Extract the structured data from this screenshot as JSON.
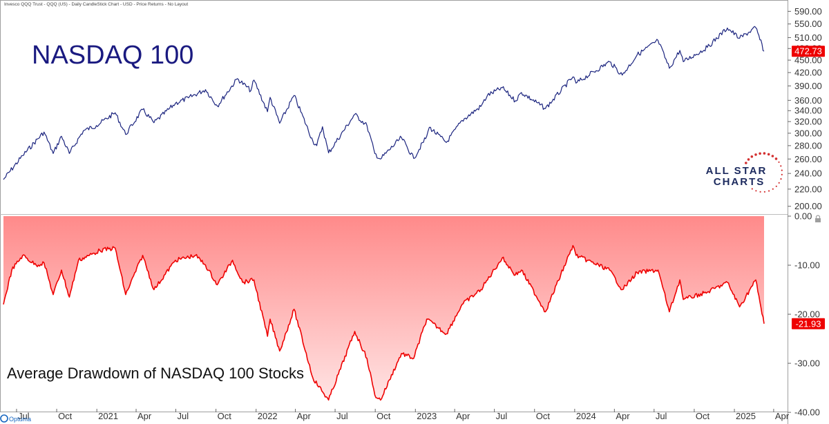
{
  "header": {
    "subtitle": "Invesco QQQ Trust - QQQ (US) - Daily CandleStick Chart - USD - Price Returns - No Layout"
  },
  "branding": {
    "logo_line1": "ALL STAR",
    "logo_line2": "CHARTS",
    "footer_logo": "Optuma"
  },
  "colors": {
    "price_line": "#1a237e",
    "drawdown_line": "#ee0000",
    "fill_top": "#ff8a8a",
    "fill_bottom": "#ffe4e4",
    "badge": "#ee0000",
    "title_text": "#1a1a80",
    "logo_navy": "#1c2a5e",
    "logo_red": "#d32f2f"
  },
  "chart_data": [
    {
      "type": "line",
      "title": "NASDAQ 100",
      "scale": "log",
      "ylim": [
        196,
        600
      ],
      "yticks": [
        "590.00",
        "550.00",
        "510.00",
        "480.00",
        "450.00",
        "420.00",
        "390.00",
        "360.00",
        "340.00",
        "320.00",
        "300.00",
        "280.00",
        "260.00",
        "240.00",
        "220.00",
        "200.00"
      ],
      "last_value_label": "472.73",
      "x_start": "2020-06-01",
      "x_end": "2025-03-10",
      "points": [
        [
          "2020-06-01",
          232
        ],
        [
          "2020-07-15",
          265
        ],
        [
          "2020-09-02",
          302
        ],
        [
          "2020-09-23",
          268
        ],
        [
          "2020-10-12",
          295
        ],
        [
          "2020-10-30",
          268
        ],
        [
          "2020-12-01",
          304
        ],
        [
          "2020-12-31",
          313
        ],
        [
          "2021-02-12",
          336
        ],
        [
          "2021-03-08",
          298
        ],
        [
          "2021-04-16",
          342
        ],
        [
          "2021-05-12",
          318
        ],
        [
          "2021-06-30",
          354
        ],
        [
          "2021-07-30",
          365
        ],
        [
          "2021-09-07",
          382
        ],
        [
          "2021-10-04",
          349
        ],
        [
          "2021-11-19",
          406
        ],
        [
          "2021-12-20",
          380
        ],
        [
          "2021-12-27",
          403
        ],
        [
          "2022-01-27",
          338
        ],
        [
          "2022-02-02",
          366
        ],
        [
          "2022-02-24",
          317
        ],
        [
          "2022-03-29",
          370
        ],
        [
          "2022-05-11",
          287
        ],
        [
          "2022-05-20",
          280
        ],
        [
          "2022-06-02",
          311
        ],
        [
          "2022-06-16",
          269
        ],
        [
          "2022-08-15",
          333
        ],
        [
          "2022-09-12",
          313
        ],
        [
          "2022-09-30",
          268
        ],
        [
          "2022-10-13",
          260
        ],
        [
          "2022-11-30",
          293
        ],
        [
          "2022-12-28",
          261
        ],
        [
          "2023-01-27",
          295
        ],
        [
          "2023-02-02",
          310
        ],
        [
          "2023-03-13",
          285
        ],
        [
          "2023-04-18",
          322
        ],
        [
          "2023-05-31",
          348
        ],
        [
          "2023-06-15",
          370
        ],
        [
          "2023-07-19",
          386
        ],
        [
          "2023-08-18",
          359
        ],
        [
          "2023-09-01",
          376
        ],
        [
          "2023-10-26",
          344
        ],
        [
          "2023-12-28",
          410
        ],
        [
          "2024-01-04",
          396
        ],
        [
          "2024-03-21",
          446
        ],
        [
          "2024-04-19",
          414
        ],
        [
          "2024-05-23",
          463
        ],
        [
          "2024-07-10",
          502
        ],
        [
          "2024-08-05",
          430
        ],
        [
          "2024-08-29",
          475
        ],
        [
          "2024-09-06",
          446
        ],
        [
          "2024-10-31",
          483
        ],
        [
          "2024-12-16",
          538
        ],
        [
          "2025-01-13",
          508
        ],
        [
          "2025-02-19",
          539
        ],
        [
          "2025-03-10",
          472.73
        ]
      ]
    },
    {
      "type": "area",
      "title": "Average Drawdown of NASDAQ 100 Stocks",
      "ylim": [
        -39,
        0
      ],
      "yticks": [
        "0.00",
        "-10.00",
        "-20.00",
        "-30.00",
        "-40.00"
      ],
      "last_value_label": "-21.93",
      "x_start": "2020-06-01",
      "x_end": "2025-03-10",
      "points": [
        [
          "2020-06-01",
          -18
        ],
        [
          "2020-06-20",
          -11
        ],
        [
          "2020-07-15",
          -8
        ],
        [
          "2020-08-15",
          -10
        ],
        [
          "2020-09-02",
          -9.5
        ],
        [
          "2020-09-23",
          -16
        ],
        [
          "2020-10-12",
          -11
        ],
        [
          "2020-10-30",
          -16.5
        ],
        [
          "2020-11-20",
          -9
        ],
        [
          "2020-12-15",
          -8
        ],
        [
          "2021-01-08",
          -7
        ],
        [
          "2021-02-12",
          -6.5
        ],
        [
          "2021-03-08",
          -16
        ],
        [
          "2021-04-16",
          -8
        ],
        [
          "2021-05-12",
          -15
        ],
        [
          "2021-06-30",
          -9
        ],
        [
          "2021-08-15",
          -8
        ],
        [
          "2021-09-07",
          -10
        ],
        [
          "2021-10-04",
          -14
        ],
        [
          "2021-11-08",
          -9
        ],
        [
          "2021-12-01",
          -13.5
        ],
        [
          "2021-12-27",
          -13
        ],
        [
          "2022-01-27",
          -24.5
        ],
        [
          "2022-02-02",
          -21
        ],
        [
          "2022-02-24",
          -27.5
        ],
        [
          "2022-03-29",
          -19
        ],
        [
          "2022-05-11",
          -33
        ],
        [
          "2022-06-16",
          -37.5
        ],
        [
          "2022-08-15",
          -23.5
        ],
        [
          "2022-09-12",
          -29
        ],
        [
          "2022-09-30",
          -36.5
        ],
        [
          "2022-10-13",
          -37.5
        ],
        [
          "2022-11-30",
          -28
        ],
        [
          "2022-12-28",
          -29
        ],
        [
          "2023-01-27",
          -21
        ],
        [
          "2023-03-13",
          -24
        ],
        [
          "2023-04-18",
          -18
        ],
        [
          "2023-05-31",
          -15
        ],
        [
          "2023-07-19",
          -8.5
        ],
        [
          "2023-08-18",
          -12
        ],
        [
          "2023-09-01",
          -11
        ],
        [
          "2023-10-26",
          -19.5
        ],
        [
          "2023-12-28",
          -6
        ],
        [
          "2024-01-04",
          -8
        ],
        [
          "2024-03-21",
          -11
        ],
        [
          "2024-04-19",
          -15
        ],
        [
          "2024-05-23",
          -11.5
        ],
        [
          "2024-07-10",
          -11
        ],
        [
          "2024-08-05",
          -19.5
        ],
        [
          "2024-08-29",
          -13
        ],
        [
          "2024-09-06",
          -17
        ],
        [
          "2024-10-31",
          -15.5
        ],
        [
          "2024-12-16",
          -13.5
        ],
        [
          "2025-01-13",
          -18.5
        ],
        [
          "2025-02-19",
          -13
        ],
        [
          "2025-03-10",
          -21.93
        ]
      ]
    }
  ],
  "x_axis": {
    "ticks": [
      {
        "date": "2020-07-01",
        "label": "Jul"
      },
      {
        "date": "2020-10-01",
        "label": "Oct"
      },
      {
        "date": "2021-01-01",
        "label": "2021"
      },
      {
        "date": "2021-04-01",
        "label": "Apr"
      },
      {
        "date": "2021-07-01",
        "label": "Jul"
      },
      {
        "date": "2021-10-01",
        "label": "Oct"
      },
      {
        "date": "2022-01-01",
        "label": "2022"
      },
      {
        "date": "2022-04-01",
        "label": "Apr"
      },
      {
        "date": "2022-07-01",
        "label": "Jul"
      },
      {
        "date": "2022-10-01",
        "label": "Oct"
      },
      {
        "date": "2023-01-01",
        "label": "2023"
      },
      {
        "date": "2023-04-01",
        "label": "Apr"
      },
      {
        "date": "2023-07-01",
        "label": "Jul"
      },
      {
        "date": "2023-10-01",
        "label": "Oct"
      },
      {
        "date": "2024-01-01",
        "label": "2024"
      },
      {
        "date": "2024-04-01",
        "label": "Apr"
      },
      {
        "date": "2024-07-01",
        "label": "Jul"
      },
      {
        "date": "2024-10-01",
        "label": "Oct"
      },
      {
        "date": "2025-01-01",
        "label": "2025"
      },
      {
        "date": "2025-04-01",
        "label": "Apr"
      }
    ]
  }
}
